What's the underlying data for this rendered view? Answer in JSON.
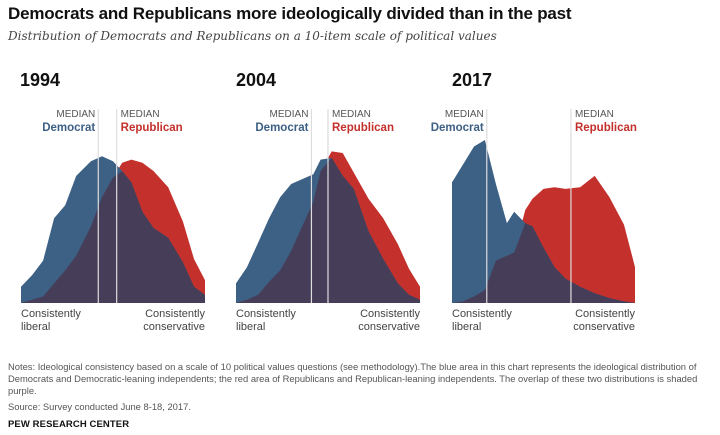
{
  "title": "Democrats and Republicans more ideologically divided than in the past",
  "subtitle": "Distribution of Democrats and Republicans on a 10-item scale of political values",
  "colors": {
    "democrat": "#3d6085",
    "republican": "#c4302b",
    "overlap": "#463e59",
    "median_line": "#dddddd"
  },
  "labels": {
    "median": "MEDIAN",
    "democrat": "Democrat",
    "republican": "Republican",
    "liberal_line1": "Consistently",
    "liberal_line2": "liberal",
    "conservative_line1": "Consistently",
    "conservative_line2": "conservative"
  },
  "chart_data": [
    {
      "type": "area",
      "year": "1994",
      "x_scale": "ideological consistency scale, consistently liberal (0) to consistently conservative (1)",
      "democrat": [
        [
          0,
          0.1
        ],
        [
          0.06,
          0.17
        ],
        [
          0.12,
          0.26
        ],
        [
          0.18,
          0.52
        ],
        [
          0.24,
          0.6
        ],
        [
          0.3,
          0.78
        ],
        [
          0.38,
          0.87
        ],
        [
          0.44,
          0.9
        ],
        [
          0.5,
          0.87
        ],
        [
          0.55,
          0.81
        ],
        [
          0.6,
          0.74
        ],
        [
          0.66,
          0.56
        ],
        [
          0.72,
          0.46
        ],
        [
          0.8,
          0.4
        ],
        [
          0.88,
          0.25
        ],
        [
          0.94,
          0.1
        ],
        [
          1,
          0.05
        ]
      ],
      "republican": [
        [
          0,
          0
        ],
        [
          0.06,
          0.02
        ],
        [
          0.12,
          0.04
        ],
        [
          0.18,
          0.12
        ],
        [
          0.24,
          0.2
        ],
        [
          0.3,
          0.29
        ],
        [
          0.38,
          0.47
        ],
        [
          0.44,
          0.65
        ],
        [
          0.5,
          0.77
        ],
        [
          0.55,
          0.86
        ],
        [
          0.6,
          0.88
        ],
        [
          0.66,
          0.86
        ],
        [
          0.72,
          0.81
        ],
        [
          0.8,
          0.71
        ],
        [
          0.88,
          0.5
        ],
        [
          0.94,
          0.27
        ],
        [
          1,
          0.14
        ]
      ],
      "median_democrat": 0.42,
      "median_republican": 0.52
    },
    {
      "type": "area",
      "year": "2004",
      "x_scale": "ideological consistency scale, consistently liberal (0) to consistently conservative (1)",
      "democrat": [
        [
          0,
          0.12
        ],
        [
          0.06,
          0.22
        ],
        [
          0.12,
          0.37
        ],
        [
          0.18,
          0.52
        ],
        [
          0.24,
          0.65
        ],
        [
          0.3,
          0.73
        ],
        [
          0.36,
          0.76
        ],
        [
          0.42,
          0.79
        ],
        [
          0.46,
          0.88
        ],
        [
          0.52,
          0.89
        ],
        [
          0.58,
          0.78
        ],
        [
          0.64,
          0.7
        ],
        [
          0.72,
          0.44
        ],
        [
          0.8,
          0.27
        ],
        [
          0.88,
          0.12
        ],
        [
          0.94,
          0.05
        ],
        [
          1,
          0.02
        ]
      ],
      "republican": [
        [
          0,
          0
        ],
        [
          0.06,
          0.02
        ],
        [
          0.12,
          0.05
        ],
        [
          0.18,
          0.13
        ],
        [
          0.24,
          0.2
        ],
        [
          0.3,
          0.32
        ],
        [
          0.36,
          0.47
        ],
        [
          0.42,
          0.62
        ],
        [
          0.46,
          0.81
        ],
        [
          0.52,
          0.93
        ],
        [
          0.58,
          0.92
        ],
        [
          0.64,
          0.8
        ],
        [
          0.72,
          0.64
        ],
        [
          0.8,
          0.52
        ],
        [
          0.88,
          0.36
        ],
        [
          0.94,
          0.21
        ],
        [
          1,
          0.1
        ]
      ],
      "median_democrat": 0.41,
      "median_republican": 0.5
    },
    {
      "type": "area",
      "year": "2017",
      "x_scale": "ideological consistency scale, consistently liberal (0) to consistently conservative (1)",
      "democrat": [
        [
          0,
          0.74
        ],
        [
          0.06,
          0.85
        ],
        [
          0.12,
          0.96
        ],
        [
          0.18,
          1.0
        ],
        [
          0.24,
          0.73
        ],
        [
          0.3,
          0.49
        ],
        [
          0.34,
          0.56
        ],
        [
          0.4,
          0.49
        ],
        [
          0.44,
          0.47
        ],
        [
          0.5,
          0.34
        ],
        [
          0.56,
          0.22
        ],
        [
          0.62,
          0.15
        ],
        [
          0.7,
          0.1
        ],
        [
          0.78,
          0.06
        ],
        [
          0.86,
          0.03
        ],
        [
          0.94,
          0.01
        ],
        [
          1,
          0.0
        ]
      ],
      "republican": [
        [
          0,
          0
        ],
        [
          0.06,
          0.01
        ],
        [
          0.12,
          0.04
        ],
        [
          0.18,
          0.08
        ],
        [
          0.24,
          0.26
        ],
        [
          0.3,
          0.29
        ],
        [
          0.34,
          0.31
        ],
        [
          0.4,
          0.57
        ],
        [
          0.44,
          0.64
        ],
        [
          0.5,
          0.7
        ],
        [
          0.56,
          0.71
        ],
        [
          0.62,
          0.7
        ],
        [
          0.7,
          0.71
        ],
        [
          0.78,
          0.78
        ],
        [
          0.86,
          0.65
        ],
        [
          0.94,
          0.48
        ],
        [
          1,
          0.22
        ]
      ],
      "median_democrat": 0.19,
      "median_republican": 0.65
    }
  ],
  "notes": "Notes: Ideological consistency based on a scale of 10 political values questions (see methodology).The blue area in this chart represents the ideological distribution of Democrats and Democratic-leaning independents; the red area of Republicans and Republican-leaning independents. The overlap of these two distributions is shaded purple.",
  "source": "Source: Survey conducted June 8-18, 2017.",
  "brand": "PEW RESEARCH CENTER"
}
